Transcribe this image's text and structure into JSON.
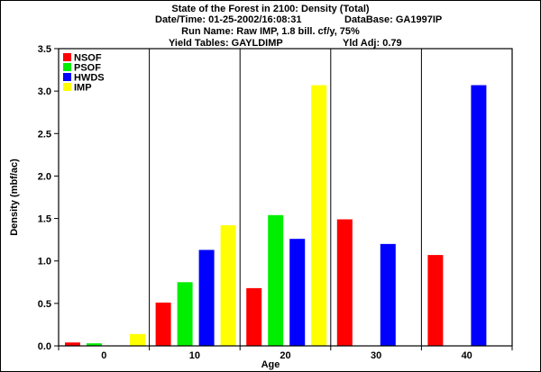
{
  "header": {
    "line1": "State of the Forest in 2100: Density (Total)",
    "datetime": "Date/Time: 01-25-2002/16:08:31",
    "database": "DataBase: GA1997IP",
    "run_name": "Run Name: Raw IMP, 1.8 bill. cf/y, 75%",
    "yield_tables": "Yield Tables: GAYLDIMP",
    "yld_adj": "Yld Adj: 0.79"
  },
  "chart_data": {
    "type": "bar",
    "xlabel": "Age",
    "ylabel": "Density (mbf/ac)",
    "ylim": [
      0,
      3.5
    ],
    "yticks": [
      "0.0",
      "0.5",
      "1.0",
      "1.5",
      "2.0",
      "2.5",
      "3.0",
      "3.5"
    ],
    "categories": [
      "0",
      "10",
      "20",
      "30",
      "40"
    ],
    "grid": "vertical",
    "legend": "top-left",
    "series": [
      {
        "name": "NSOF",
        "color": "#ff0000",
        "values": [
          0.04,
          0.51,
          0.68,
          1.49,
          1.07
        ]
      },
      {
        "name": "PSOF",
        "color": "#00ee00",
        "values": [
          0.03,
          0.75,
          1.54,
          0,
          0
        ]
      },
      {
        "name": "HWDS",
        "color": "#0000ff",
        "values": [
          0,
          1.13,
          1.26,
          1.2,
          3.07
        ]
      },
      {
        "name": "IMP",
        "color": "#ffff00",
        "values": [
          0.14,
          1.42,
          3.07,
          0,
          0
        ]
      }
    ]
  }
}
